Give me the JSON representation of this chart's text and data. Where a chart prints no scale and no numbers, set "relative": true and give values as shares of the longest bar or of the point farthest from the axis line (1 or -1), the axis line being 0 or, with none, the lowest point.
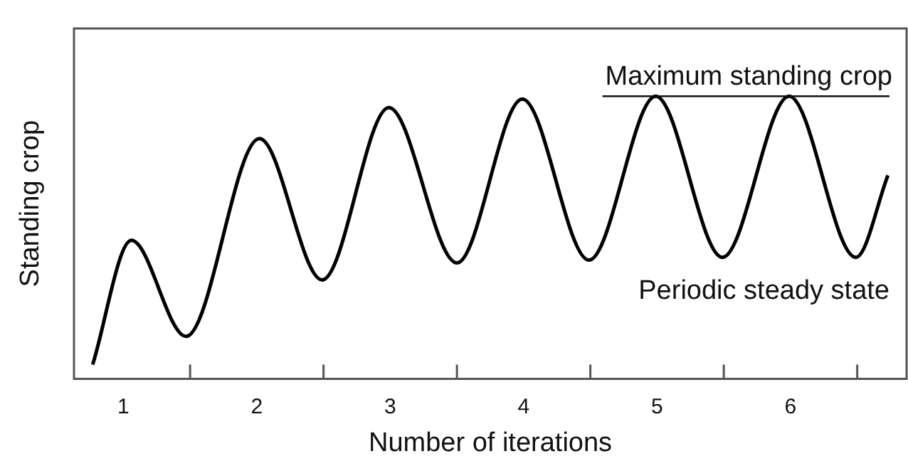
{
  "chart_data": {
    "type": "line",
    "xlabel": "Number of iterations",
    "ylabel": "Standing crop",
    "relative": true,
    "x": [
      0.77,
      1.06,
      1.47,
      2.02,
      2.49,
      2.99,
      3.5,
      3.99,
      4.49,
      4.99,
      5.49,
      5.99,
      6.49,
      6.73
    ],
    "values": [
      0.05,
      0.49,
      0.15,
      0.85,
      0.35,
      0.96,
      0.41,
      0.99,
      0.42,
      1,
      0.43,
      1,
      0.43,
      0.72
    ],
    "color": "#000000",
    "xlim": [
      0.63,
      6.87
    ],
    "xticks": [
      {
        "value": 1,
        "label": "1"
      },
      {
        "value": 1.5,
        "label": null
      },
      {
        "value": 2,
        "label": "2"
      },
      {
        "value": 2.5,
        "label": null
      },
      {
        "value": 3,
        "label": "3"
      },
      {
        "value": 3.5,
        "label": null
      },
      {
        "value": 4,
        "label": "4"
      },
      {
        "value": 4.5,
        "label": null
      },
      {
        "value": 5,
        "label": "5"
      },
      {
        "value": 5.5,
        "label": null
      },
      {
        "value": 6,
        "label": "6"
      },
      {
        "value": 6.5,
        "label": null
      }
    ],
    "ref_lines": [
      {
        "axis": "y",
        "value": 1,
        "label": "Maximum standing crop"
      }
    ],
    "annotations": [
      "Periodic steady state"
    ]
  }
}
